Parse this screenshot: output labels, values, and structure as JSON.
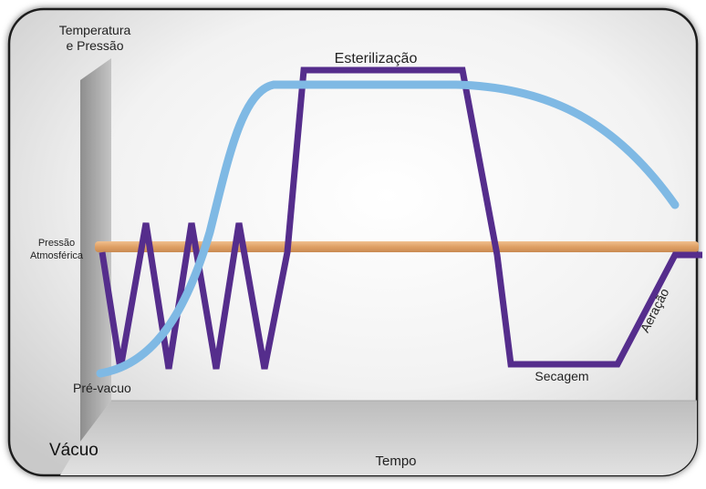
{
  "labels": {
    "y_axis_title_line1": "Temperatura",
    "y_axis_title_line2": "e Pressão",
    "atm_line1": "Pressão",
    "atm_line2": "Atmosférica",
    "pre_vacuo": "Pré-vacuo",
    "vacuo": "Vácuo",
    "tempo": "Tempo",
    "esterilizacao": "Esterilização",
    "secagem": "Secagem",
    "aeracao": "Aeração"
  },
  "colors": {
    "pressure_curve": "#552d8c",
    "temperature_curve": "#7fb9e4",
    "atmospheric_line": "#e0a56a",
    "background_gray": "#ededed",
    "wall_gray": "#b5b5b5",
    "floor_gray": "#c6c6c6"
  }
}
